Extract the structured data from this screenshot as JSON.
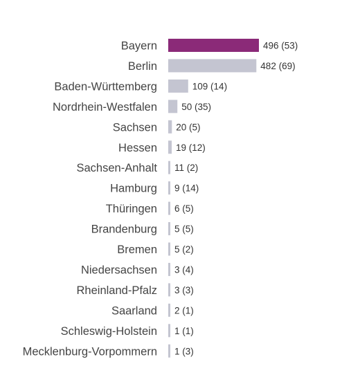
{
  "chart_data": {
    "type": "bar",
    "orientation": "horizontal",
    "categories": [
      "Bayern",
      "Berlin",
      "Baden-Württemberg",
      "Nordrhein-Westfalen",
      "Sachsen",
      "Hessen",
      "Sachsen-Anhalt",
      "Hamburg",
      "Thüringen",
      "Brandenburg",
      "Bremen",
      "Niedersachsen",
      "Rheinland-Pfalz",
      "Saarland",
      "Schleswig-Holstein",
      "Mecklenburg-Vorpommern"
    ],
    "values": [
      496,
      482,
      109,
      50,
      20,
      19,
      11,
      9,
      6,
      5,
      5,
      3,
      3,
      2,
      1,
      1
    ],
    "secondary_values": [
      53,
      69,
      14,
      35,
      5,
      12,
      2,
      14,
      5,
      5,
      2,
      4,
      3,
      1,
      1,
      3
    ],
    "value_labels": [
      "496 (53)",
      "482 (69)",
      "109 (14)",
      "50 (35)",
      "20 (5)",
      "19 (12)",
      "11 (2)",
      "9 (14)",
      "6 (5)",
      "5 (5)",
      "5 (2)",
      "3 (4)",
      "3 (3)",
      "2 (1)",
      "1 (1)",
      "1 (3)"
    ],
    "highlight_index": 0,
    "colors": {
      "highlight": "#8b2a78",
      "default": "#c4c5d1",
      "label": "#444444",
      "value_label": "#333333"
    },
    "xlim": [
      0,
      496
    ],
    "grid": false,
    "legend": "none",
    "title": "",
    "xlabel": "",
    "ylabel": ""
  }
}
